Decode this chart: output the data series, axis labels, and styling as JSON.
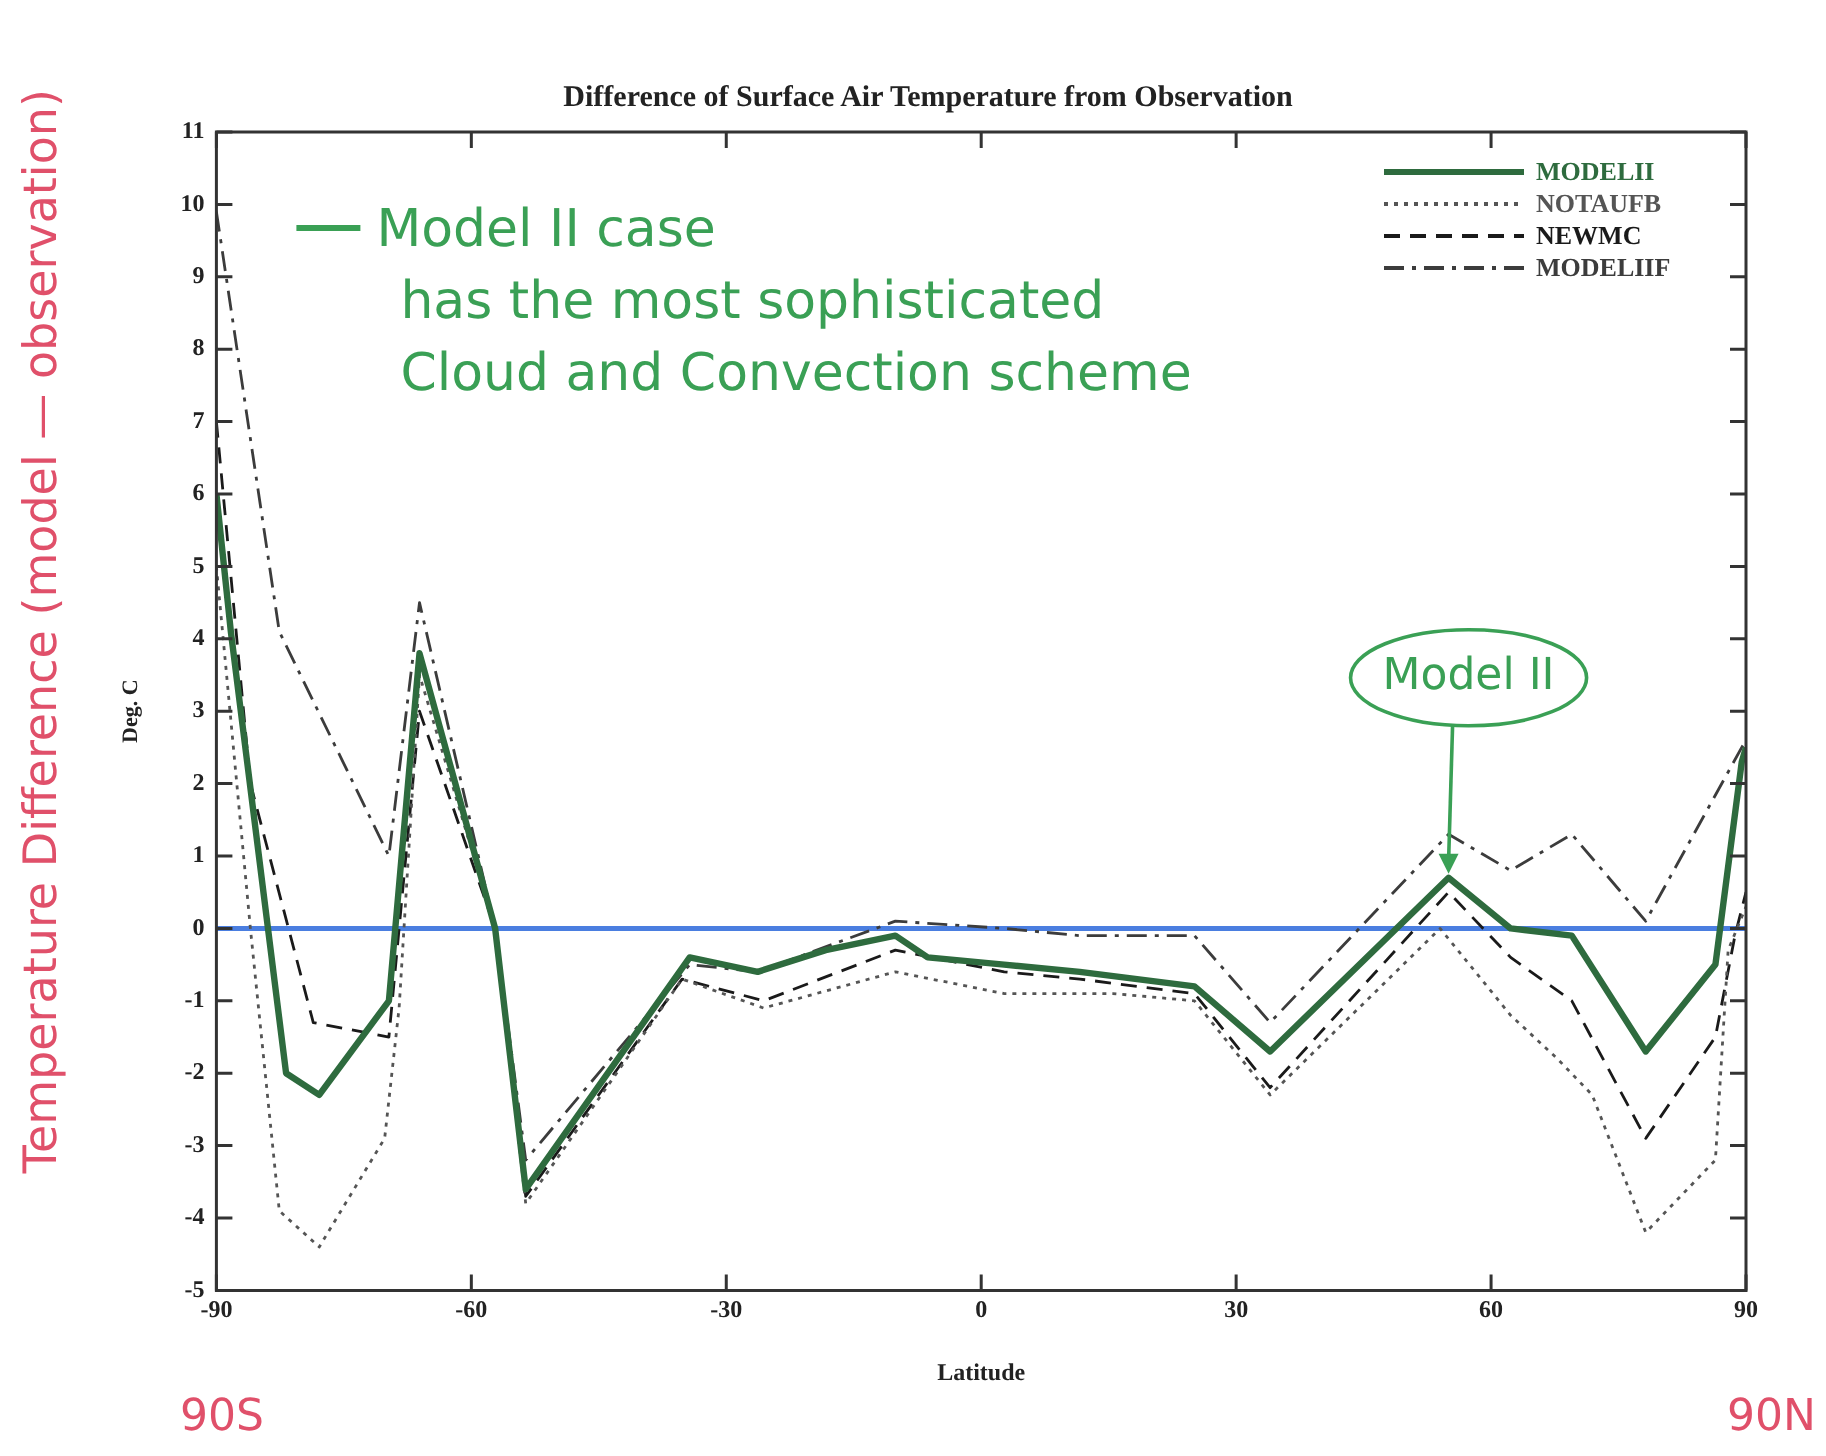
{
  "chart_data": {
    "type": "line",
    "title": "Difference of Surface Air Temperature from Observation",
    "xlabel": "Latitude",
    "ylabel": "Deg. C",
    "xlim": [
      -90,
      90
    ],
    "xticks": [
      -90,
      -60,
      -30,
      0,
      30,
      60,
      90
    ],
    "ylim": [
      -5,
      11
    ],
    "yticks": [
      -5,
      -4,
      -3,
      -2,
      -1,
      0,
      1,
      2,
      3,
      4,
      5,
      6,
      7,
      8,
      9,
      10,
      11
    ],
    "grid": false,
    "legend": "top right",
    "marker": "none",
    "series": [
      {
        "name": "MODELII",
        "color": "#2e6b3e",
        "line_style": "solid",
        "x": [
          -90,
          -88.3,
          -81.8,
          -77.9,
          -69.7,
          -66.1,
          -57.2,
          -53.6,
          -34.3,
          -26.3,
          -18.3,
          -10.1,
          -6.3,
          2.7,
          11.6,
          25.1,
          34,
          55,
          62.3,
          69.5,
          78.2,
          86.4,
          89.5,
          90
        ],
        "values": [
          6,
          4.1,
          -2,
          -2.3,
          -1,
          3.8,
          0,
          -3.6,
          -0.4,
          -0.6,
          -0.3,
          -0.1,
          -0.4,
          -0.5,
          -0.6,
          -0.8,
          -1.7,
          0.7,
          0,
          -0.1,
          -1.7,
          -0.5,
          2.3,
          2.5
        ]
      },
      {
        "name": "NOTAUFB",
        "color": "#555555",
        "line_style": "dotted",
        "x": [
          -90,
          -86,
          -82.6,
          -77.9,
          -70.2,
          -68.5,
          -66.1,
          -57.2,
          -53.6,
          -35.2,
          -25.6,
          -10.1,
          2.7,
          15.5,
          25.1,
          34,
          54,
          62.3,
          67.8,
          71.9,
          78.2,
          86.4,
          87.9,
          90
        ],
        "values": [
          5,
          0,
          -3.9,
          -4.4,
          -2.9,
          -1.1,
          3.5,
          0,
          -3.8,
          -0.7,
          -1.1,
          -0.6,
          -0.9,
          -0.9,
          -1,
          -2.3,
          0,
          -1.2,
          -1.8,
          -2.3,
          -4.2,
          -3.2,
          -0.3,
          0.3
        ]
      },
      {
        "name": "NEWMC",
        "color": "#1a1a1a",
        "line_style": "dashed",
        "x": [
          -90,
          -86,
          -78.6,
          -69.7,
          -66.1,
          -57.2,
          -53.6,
          -35.2,
          -25.6,
          -10.1,
          2.7,
          11.6,
          25.1,
          34,
          55,
          62.3,
          69.5,
          78.2,
          86.4,
          88.7,
          90
        ],
        "values": [
          7,
          2,
          -1.3,
          -1.5,
          3,
          0,
          -3.7,
          -0.7,
          -1,
          -0.3,
          -0.6,
          -0.7,
          -0.9,
          -2.2,
          0.5,
          -0.4,
          -1,
          -2.9,
          -1.5,
          -0.1,
          0.5
        ]
      },
      {
        "name": "MODELIIF",
        "color": "#3c3c3c",
        "line_style": "dashdot",
        "x": [
          -90,
          -82.6,
          -69.7,
          -66.1,
          -57.2,
          -53.6,
          -34.3,
          -26.3,
          -10.1,
          2.7,
          11.6,
          25.1,
          34,
          55,
          62.3,
          69.5,
          78.2,
          89.5,
          90
        ],
        "values": [
          9.9,
          4.1,
          1,
          4.5,
          0,
          -3.2,
          -0.5,
          -0.6,
          0.1,
          0,
          -0.1,
          -0.1,
          -1.3,
          1.3,
          0.8,
          1.3,
          0.1,
          2.5,
          2.6
        ]
      }
    ],
    "ref_lines": [
      {
        "axis": "y",
        "value": 0,
        "color": "#4a7ee0"
      }
    ],
    "annotations": [
      "Model II case has the most sophisticated Cloud and Convection scheme",
      {
        "text": "Model II",
        "x": 55,
        "y": 0.7
      },
      "Temperature Difference (model — observation)",
      "90S",
      "90N"
    ]
  }
}
